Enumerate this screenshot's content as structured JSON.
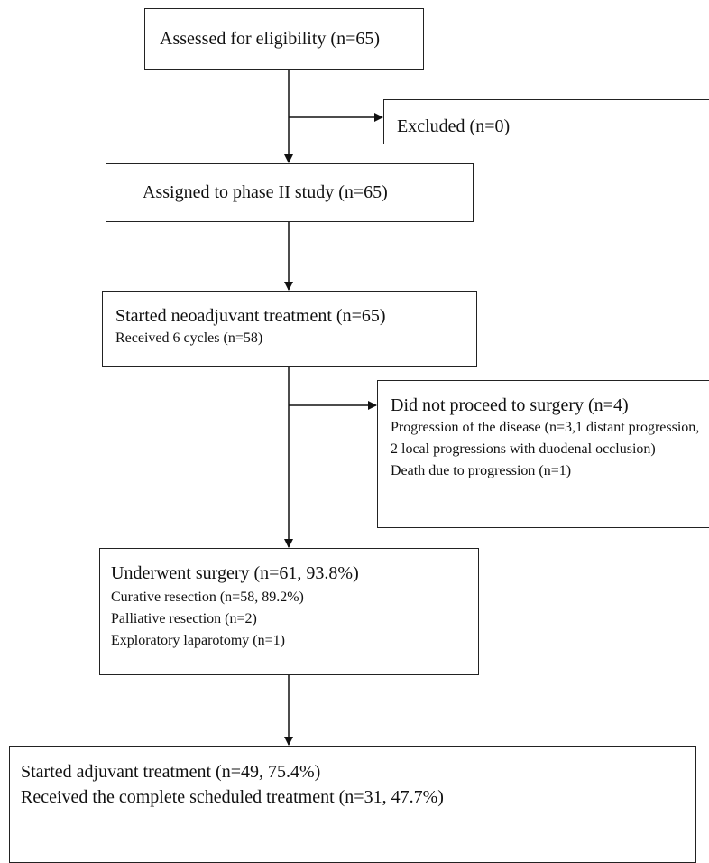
{
  "nodes": [
    {
      "title": "Assessed for eligibility (n=65)"
    },
    {
      "title": "Excluded (n=0)"
    },
    {
      "title": "Assigned to phase II study (n=65)"
    },
    {
      "title": "Started neoadjuvant treatment (n=65)",
      "lines": [
        "Received 6 cycles (n=58)"
      ]
    },
    {
      "title": "Did not proceed to surgery (n=4)",
      "lines": [
        "Progression of the disease (n=3,1 distant progression, 2 local progressions with duodenal occlusion)",
        "Death due to progression (n=1)"
      ]
    },
    {
      "title": "Underwent surgery (n=61, 93.8%)",
      "lines": [
        "Curative  resection (n=58, 89.2%)",
        "Palliative resection (n=2)",
        "Exploratory laparotomy (n=1)"
      ]
    },
    {
      "title": "Started adjuvant treatment (n=49, 75.4%)",
      "lines": [
        "Received the complete scheduled treatment (n=31, 47.7%)"
      ]
    }
  ]
}
